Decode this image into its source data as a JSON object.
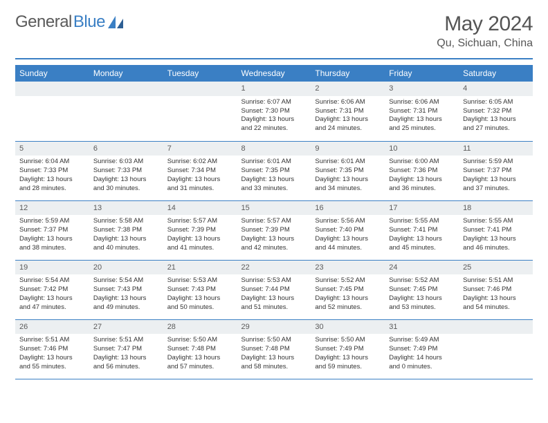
{
  "logo": {
    "text_left": "General",
    "text_right": "Blue"
  },
  "title": "May 2024",
  "location": "Qu, Sichuan, China",
  "colors": {
    "header_bg": "#3a7fc4",
    "header_fg": "#ffffff",
    "daynum_bg": "#eceff1",
    "rule": "#3a7fc4",
    "text": "#333333"
  },
  "weekdays": [
    "Sunday",
    "Monday",
    "Tuesday",
    "Wednesday",
    "Thursday",
    "Friday",
    "Saturday"
  ],
  "weeks": [
    [
      null,
      null,
      null,
      {
        "n": "1",
        "sr": "Sunrise: 6:07 AM",
        "ss": "Sunset: 7:30 PM",
        "dl": "Daylight: 13 hours and 22 minutes."
      },
      {
        "n": "2",
        "sr": "Sunrise: 6:06 AM",
        "ss": "Sunset: 7:31 PM",
        "dl": "Daylight: 13 hours and 24 minutes."
      },
      {
        "n": "3",
        "sr": "Sunrise: 6:06 AM",
        "ss": "Sunset: 7:31 PM",
        "dl": "Daylight: 13 hours and 25 minutes."
      },
      {
        "n": "4",
        "sr": "Sunrise: 6:05 AM",
        "ss": "Sunset: 7:32 PM",
        "dl": "Daylight: 13 hours and 27 minutes."
      }
    ],
    [
      {
        "n": "5",
        "sr": "Sunrise: 6:04 AM",
        "ss": "Sunset: 7:33 PM",
        "dl": "Daylight: 13 hours and 28 minutes."
      },
      {
        "n": "6",
        "sr": "Sunrise: 6:03 AM",
        "ss": "Sunset: 7:33 PM",
        "dl": "Daylight: 13 hours and 30 minutes."
      },
      {
        "n": "7",
        "sr": "Sunrise: 6:02 AM",
        "ss": "Sunset: 7:34 PM",
        "dl": "Daylight: 13 hours and 31 minutes."
      },
      {
        "n": "8",
        "sr": "Sunrise: 6:01 AM",
        "ss": "Sunset: 7:35 PM",
        "dl": "Daylight: 13 hours and 33 minutes."
      },
      {
        "n": "9",
        "sr": "Sunrise: 6:01 AM",
        "ss": "Sunset: 7:35 PM",
        "dl": "Daylight: 13 hours and 34 minutes."
      },
      {
        "n": "10",
        "sr": "Sunrise: 6:00 AM",
        "ss": "Sunset: 7:36 PM",
        "dl": "Daylight: 13 hours and 36 minutes."
      },
      {
        "n": "11",
        "sr": "Sunrise: 5:59 AM",
        "ss": "Sunset: 7:37 PM",
        "dl": "Daylight: 13 hours and 37 minutes."
      }
    ],
    [
      {
        "n": "12",
        "sr": "Sunrise: 5:59 AM",
        "ss": "Sunset: 7:37 PM",
        "dl": "Daylight: 13 hours and 38 minutes."
      },
      {
        "n": "13",
        "sr": "Sunrise: 5:58 AM",
        "ss": "Sunset: 7:38 PM",
        "dl": "Daylight: 13 hours and 40 minutes."
      },
      {
        "n": "14",
        "sr": "Sunrise: 5:57 AM",
        "ss": "Sunset: 7:39 PM",
        "dl": "Daylight: 13 hours and 41 minutes."
      },
      {
        "n": "15",
        "sr": "Sunrise: 5:57 AM",
        "ss": "Sunset: 7:39 PM",
        "dl": "Daylight: 13 hours and 42 minutes."
      },
      {
        "n": "16",
        "sr": "Sunrise: 5:56 AM",
        "ss": "Sunset: 7:40 PM",
        "dl": "Daylight: 13 hours and 44 minutes."
      },
      {
        "n": "17",
        "sr": "Sunrise: 5:55 AM",
        "ss": "Sunset: 7:41 PM",
        "dl": "Daylight: 13 hours and 45 minutes."
      },
      {
        "n": "18",
        "sr": "Sunrise: 5:55 AM",
        "ss": "Sunset: 7:41 PM",
        "dl": "Daylight: 13 hours and 46 minutes."
      }
    ],
    [
      {
        "n": "19",
        "sr": "Sunrise: 5:54 AM",
        "ss": "Sunset: 7:42 PM",
        "dl": "Daylight: 13 hours and 47 minutes."
      },
      {
        "n": "20",
        "sr": "Sunrise: 5:54 AM",
        "ss": "Sunset: 7:43 PM",
        "dl": "Daylight: 13 hours and 49 minutes."
      },
      {
        "n": "21",
        "sr": "Sunrise: 5:53 AM",
        "ss": "Sunset: 7:43 PM",
        "dl": "Daylight: 13 hours and 50 minutes."
      },
      {
        "n": "22",
        "sr": "Sunrise: 5:53 AM",
        "ss": "Sunset: 7:44 PM",
        "dl": "Daylight: 13 hours and 51 minutes."
      },
      {
        "n": "23",
        "sr": "Sunrise: 5:52 AM",
        "ss": "Sunset: 7:45 PM",
        "dl": "Daylight: 13 hours and 52 minutes."
      },
      {
        "n": "24",
        "sr": "Sunrise: 5:52 AM",
        "ss": "Sunset: 7:45 PM",
        "dl": "Daylight: 13 hours and 53 minutes."
      },
      {
        "n": "25",
        "sr": "Sunrise: 5:51 AM",
        "ss": "Sunset: 7:46 PM",
        "dl": "Daylight: 13 hours and 54 minutes."
      }
    ],
    [
      {
        "n": "26",
        "sr": "Sunrise: 5:51 AM",
        "ss": "Sunset: 7:46 PM",
        "dl": "Daylight: 13 hours and 55 minutes."
      },
      {
        "n": "27",
        "sr": "Sunrise: 5:51 AM",
        "ss": "Sunset: 7:47 PM",
        "dl": "Daylight: 13 hours and 56 minutes."
      },
      {
        "n": "28",
        "sr": "Sunrise: 5:50 AM",
        "ss": "Sunset: 7:48 PM",
        "dl": "Daylight: 13 hours and 57 minutes."
      },
      {
        "n": "29",
        "sr": "Sunrise: 5:50 AM",
        "ss": "Sunset: 7:48 PM",
        "dl": "Daylight: 13 hours and 58 minutes."
      },
      {
        "n": "30",
        "sr": "Sunrise: 5:50 AM",
        "ss": "Sunset: 7:49 PM",
        "dl": "Daylight: 13 hours and 59 minutes."
      },
      {
        "n": "31",
        "sr": "Sunrise: 5:49 AM",
        "ss": "Sunset: 7:49 PM",
        "dl": "Daylight: 14 hours and 0 minutes."
      },
      null
    ]
  ]
}
